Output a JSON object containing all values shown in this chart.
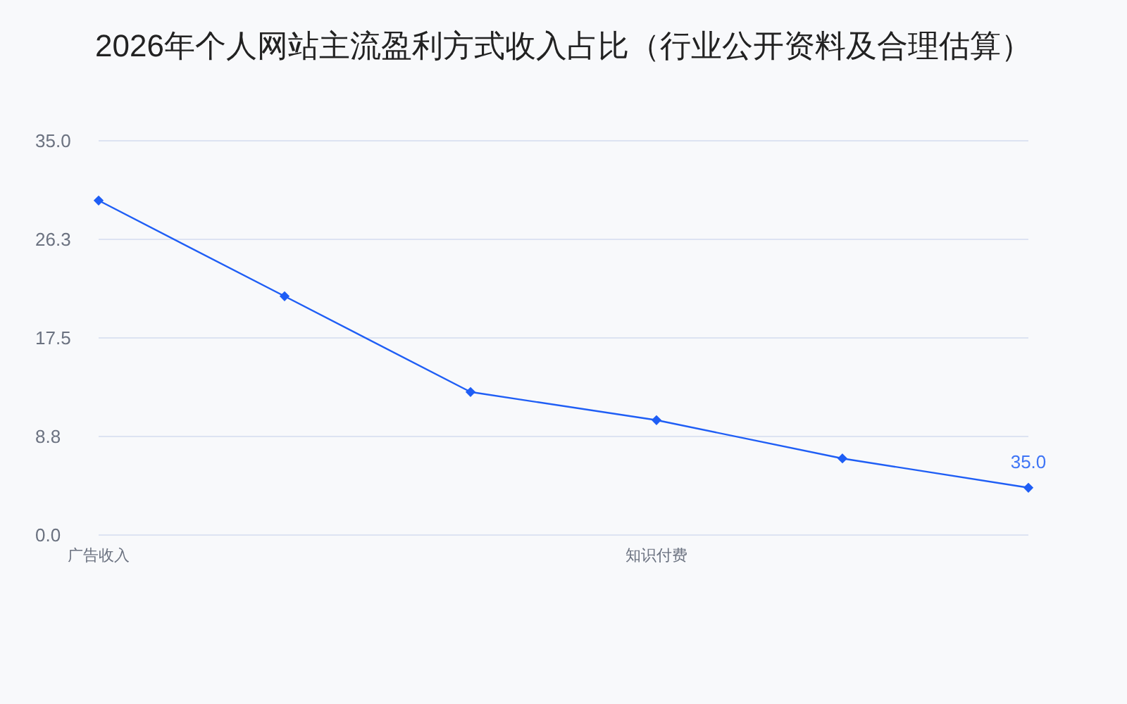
{
  "chart_data": {
    "type": "line",
    "title": "2026年个人网站主流盈利方式收入占比（行业公开资料及合理估算）",
    "categories": [
      "广告收入",
      null,
      null,
      "知识付费",
      null,
      null
    ],
    "values": [
      29.7,
      21.2,
      12.7,
      10.2,
      6.8,
      4.2
    ],
    "color": "#1f5ef5",
    "ylim": [
      0,
      35
    ],
    "yticks": [
      {
        "value": 0,
        "label": "0.0"
      },
      {
        "value": 8.75,
        "label": "8.8"
      },
      {
        "value": 17.5,
        "label": "17.5"
      },
      {
        "value": 26.25,
        "label": "26.3"
      },
      {
        "value": 35,
        "label": "35.0"
      }
    ],
    "grid": "y",
    "marker": "diamond",
    "line_style": "solid",
    "annotations": [
      {
        "text": "35.0",
        "y": 4.2
      }
    ]
  }
}
